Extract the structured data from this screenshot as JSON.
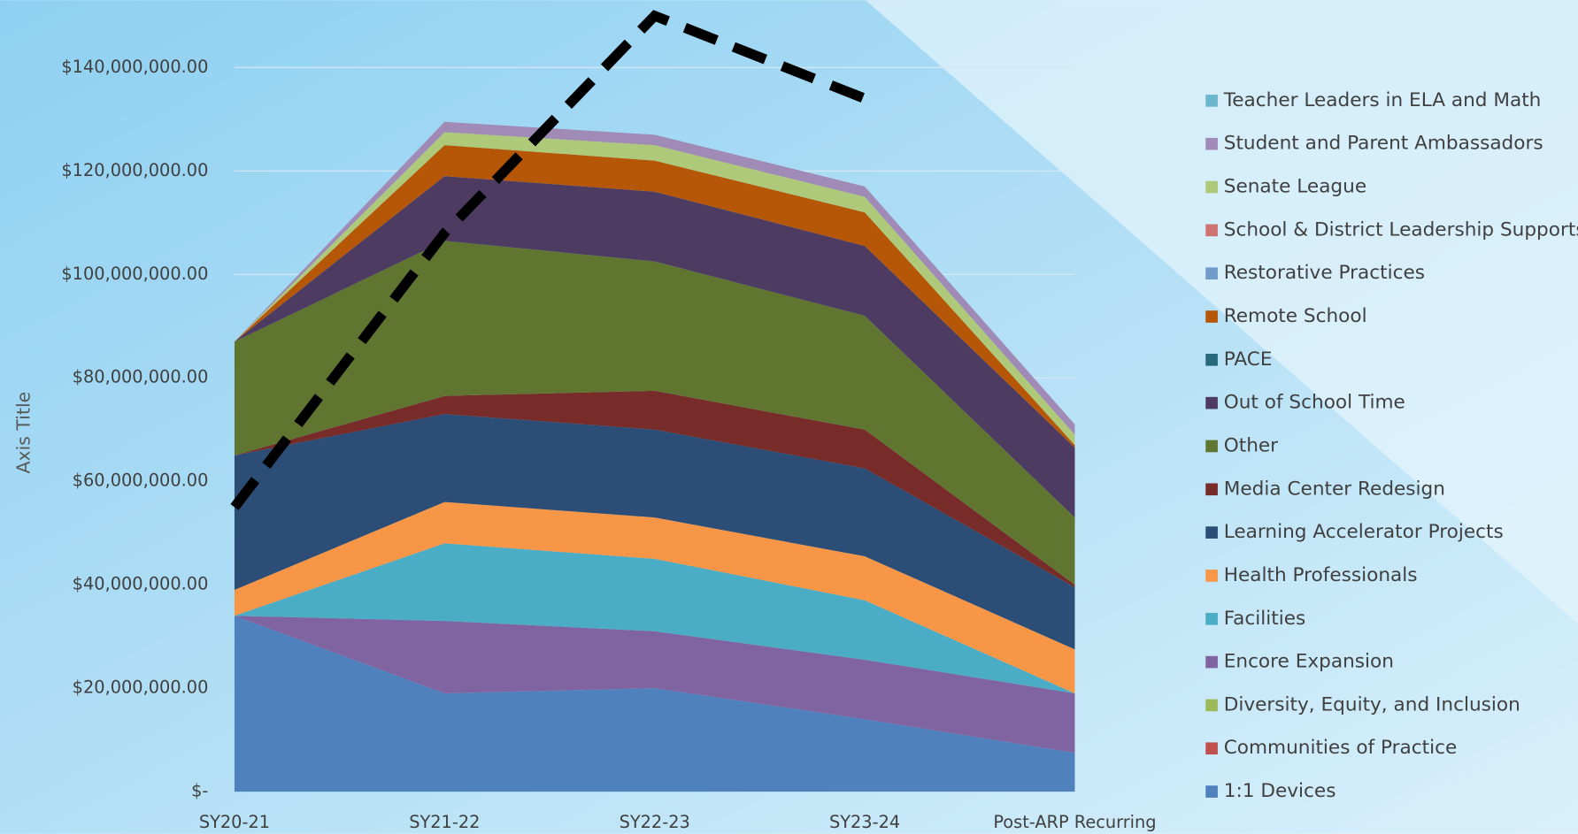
{
  "chart_data": {
    "type": "stacked_area",
    "y_axis_title": "Axis Title",
    "categories": [
      "SY20-21",
      "SY21-22",
      "SY22-23",
      "SY23-24",
      "Post-ARP Recurring"
    ],
    "ylim": [
      0,
      140000000
    ],
    "yticks": [
      {
        "value": 0,
        "label": "$-"
      },
      {
        "value": 20000000,
        "label": "$20,000,000.00"
      },
      {
        "value": 40000000,
        "label": "$40,000,000.00"
      },
      {
        "value": 60000000,
        "label": "$60,000,000.00"
      },
      {
        "value": 80000000,
        "label": "$80,000,000.00"
      },
      {
        "value": 100000000,
        "label": "$100,000,000.00"
      },
      {
        "value": 120000000,
        "label": "$120,000,000.00"
      },
      {
        "value": 140000000,
        "label": "$140,000,000.00"
      }
    ],
    "grid": true,
    "legend": "right",
    "series": [
      {
        "name": "1:1 Devices",
        "color": "#4f81bd",
        "values": [
          34000000,
          19000000,
          20000000,
          14000000,
          7500000
        ]
      },
      {
        "name": "Communities of Practice",
        "color": "#c0504d",
        "values": [
          0,
          0,
          0,
          0,
          0
        ]
      },
      {
        "name": "Diversity, Equity, and Inclusion",
        "color": "#9bbb59",
        "values": [
          0,
          0,
          0,
          0,
          0
        ]
      },
      {
        "name": "Encore Expansion",
        "color": "#8064a2",
        "values": [
          0,
          14000000,
          11000000,
          11500000,
          11500000
        ]
      },
      {
        "name": "Facilities",
        "color": "#4bacc6",
        "values": [
          0,
          15000000,
          14000000,
          11500000,
          0
        ]
      },
      {
        "name": "Health Professionals",
        "color": "#f79646",
        "values": [
          5000000,
          8000000,
          8000000,
          8500000,
          8500000
        ]
      },
      {
        "name": "Learning Accelerator Projects",
        "color": "#2c4d75",
        "values": [
          26000000,
          17000000,
          17000000,
          17000000,
          12000000
        ]
      },
      {
        "name": "Media Center Redesign",
        "color": "#772c2a",
        "values": [
          0,
          3500000,
          7500000,
          7500000,
          500000
        ]
      },
      {
        "name": "Other",
        "color": "#5f7530",
        "values": [
          22000000,
          30000000,
          25000000,
          22000000,
          13000000
        ]
      },
      {
        "name": "Out of School Time",
        "color": "#4d3b62",
        "values": [
          0,
          12500000,
          13500000,
          13500000,
          13500000
        ]
      },
      {
        "name": "PACE",
        "color": "#276a7c",
        "values": [
          0,
          0,
          0,
          0,
          0
        ]
      },
      {
        "name": "Remote School",
        "color": "#b65708",
        "values": [
          0,
          6000000,
          6000000,
          6500000,
          500000
        ]
      },
      {
        "name": "Restorative Practices",
        "color": "#729aca",
        "values": [
          0,
          0,
          0,
          0,
          0
        ]
      },
      {
        "name": "School & District Leadership Supports",
        "color": "#cd7371",
        "values": [
          0,
          0,
          0,
          0,
          0
        ]
      },
      {
        "name": "Senate League",
        "color": "#afc97a",
        "values": [
          0,
          2500000,
          3000000,
          3000000,
          2000000
        ]
      },
      {
        "name": "Student and Parent Ambassadors",
        "color": "#a08ab6",
        "values": [
          0,
          2000000,
          2000000,
          2000000,
          2000000
        ]
      },
      {
        "name": "Teacher Leaders in ELA and Math",
        "color": "#6bb6cc",
        "values": [
          0,
          0,
          0,
          0,
          0
        ]
      }
    ],
    "overlay_line": {
      "color": "#000000",
      "dashed": true,
      "values": [
        55000000,
        108000000,
        150000000,
        134000000,
        null
      ]
    }
  }
}
